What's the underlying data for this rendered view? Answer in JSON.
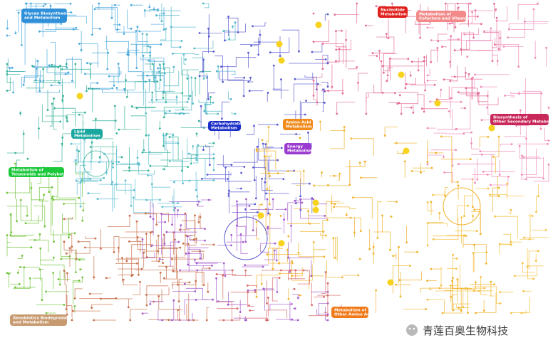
{
  "regions": [
    {
      "lines": [
        "Glycan Biosynthesis",
        "and Metabolism"
      ]
    },
    {
      "lines": [
        "Nucleotide",
        "Metabolism"
      ]
    },
    {
      "lines": [
        "Metabolism of",
        "Cofactors and Vitamins"
      ]
    },
    {
      "lines": [
        "Biosynthesis of",
        "Other Secondary Metabolites"
      ]
    },
    {
      "lines": [
        "Lipid",
        "Metabolism"
      ]
    },
    {
      "lines": [
        "Carbohydrate",
        "Metabolism"
      ]
    },
    {
      "lines": [
        "Amino Acid",
        "Metabolism"
      ]
    },
    {
      "lines": [
        "Energy",
        "Metabolism"
      ]
    },
    {
      "lines": [
        "Metabolism of",
        "Terpenoids and Polyketides"
      ]
    },
    {
      "lines": [
        "Xenobiotics Biodegradation",
        "and Metabolism"
      ]
    },
    {
      "lines": [
        "Metabolism of",
        "Other Amino Acids"
      ]
    }
  ],
  "watermark": "青莲百奥生物科技"
}
